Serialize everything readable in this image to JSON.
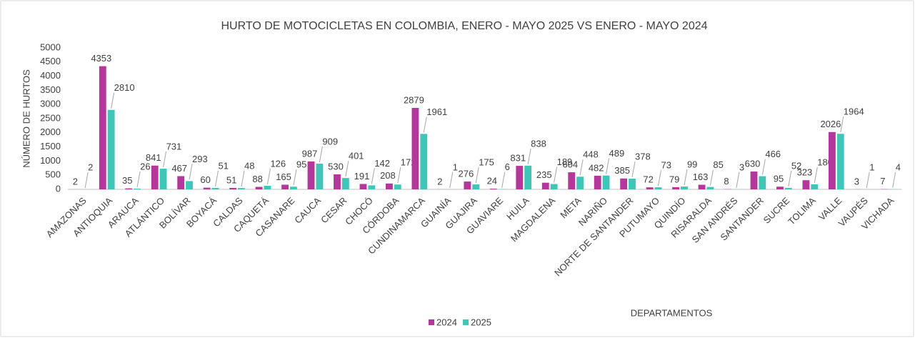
{
  "chart_data": {
    "type": "bar",
    "title": "HURTO DE MOTOCICLETAS EN COLOMBIA, ENERO - MAYO 2025 VS ENERO - MAYO 2024",
    "y_label": "NÚMERO DE HURTOS",
    "x_label": "DEPARTAMENTOS",
    "categories": [
      "AMAZONAS",
      "ANTIOQUIA",
      "ARAUCA",
      "ATLÁNTICO",
      "BOLÍVAR",
      "BOYACÁ",
      "CALDAS",
      "CAQUETÁ",
      "CASANARE",
      "CAUCA",
      "CESAR",
      "CHOCÓ",
      "CÓRDOBA",
      "CUNDINAMARCA",
      "GUAINÍA",
      "GUAJIRA",
      "GUAVIARE",
      "HUILA",
      "MAGDALENA",
      "META",
      "NARIÑO",
      "NORTE DE SANTANDER",
      "PUTUMAYO",
      "QUINDÍO",
      "RISARALDA",
      "SAN ANDRÉS",
      "SANTANDER",
      "SUCRE",
      "TOLIMA",
      "VALLE",
      "VAUPÉS",
      "VICHADA"
    ],
    "series": [
      {
        "name": "2024",
        "color": "#b4379b",
        "values": [
          2,
          4353,
          35,
          841,
          467,
          60,
          51,
          88,
          165,
          987,
          530,
          191,
          208,
          2879,
          2,
          276,
          24,
          831,
          235,
          604,
          482,
          385,
          72,
          79,
          163,
          8,
          630,
          95,
          323,
          2026,
          3,
          7
        ]
      },
      {
        "name": "2025",
        "color": "#3fc6b8",
        "values": [
          2,
          2810,
          26,
          731,
          293,
          51,
          48,
          126,
          95,
          909,
          401,
          142,
          172,
          1961,
          1,
          175,
          6,
          838,
          189,
          448,
          489,
          378,
          73,
          99,
          85,
          3,
          466,
          52,
          180,
          1964,
          1,
          4
        ]
      }
    ],
    "ylim": [
      0,
      5000
    ],
    "yticks": [
      0,
      500,
      1000,
      1500,
      2000,
      2500,
      3000,
      3500,
      4000,
      4500,
      5000
    ],
    "grid": false,
    "legend": "bottom"
  }
}
